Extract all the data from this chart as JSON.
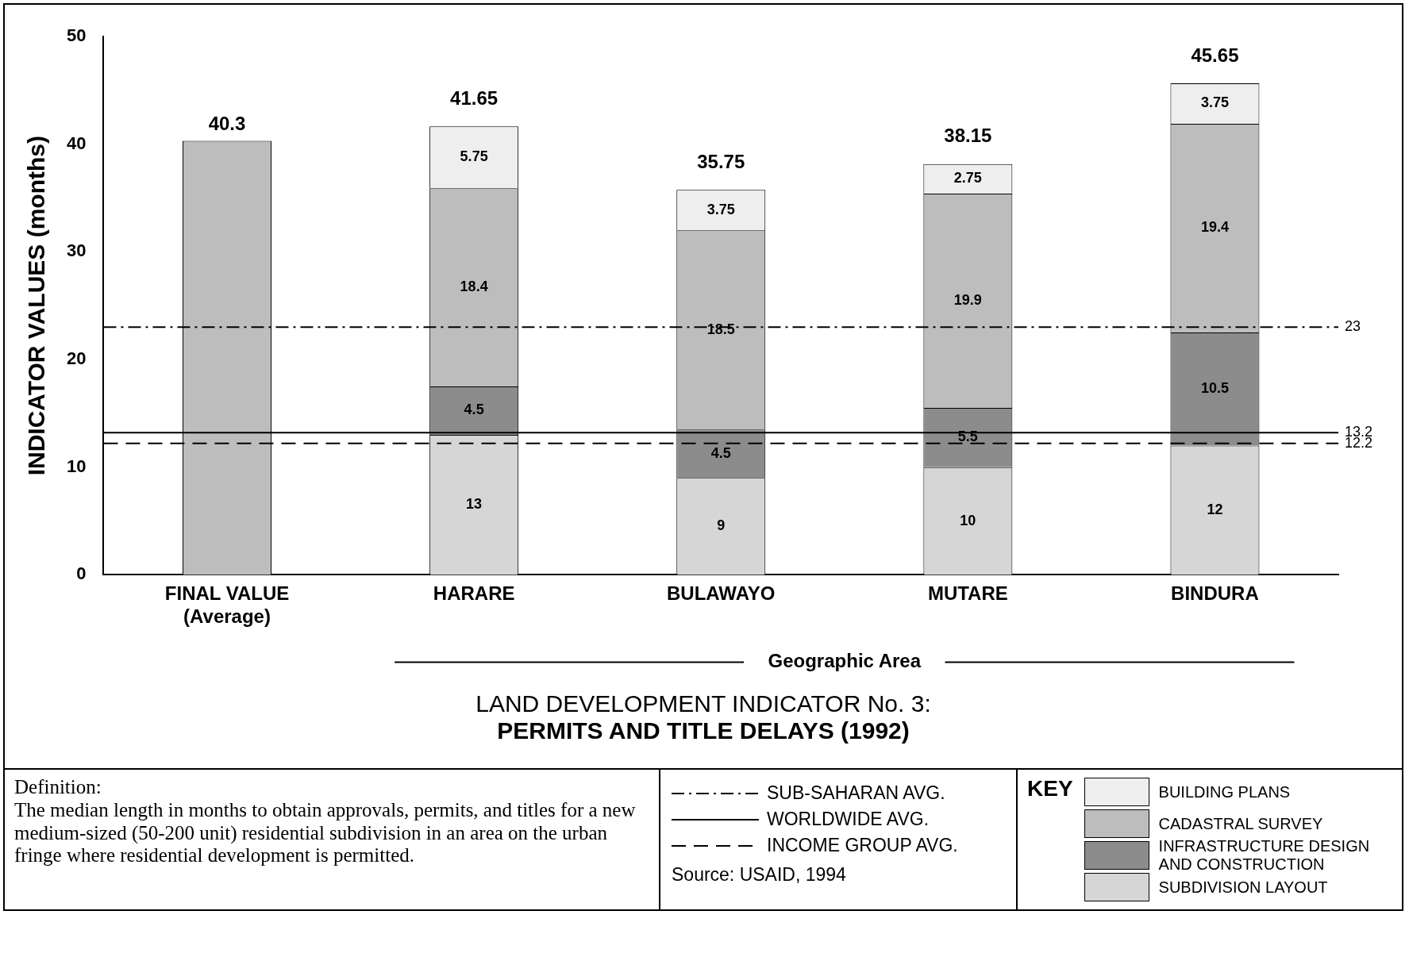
{
  "chart_data": {
    "type": "bar",
    "title": "LAND DEVELOPMENT INDICATOR No. 3:",
    "subtitle": "PERMITS AND TITLE DELAYS (1992)",
    "ylabel": "INDICATOR VALUES (months)",
    "legend_title": "KEY",
    "categories": [
      "FINAL VALUE\n(Average)",
      "HARARE",
      "BULAWAYO",
      "MUTARE",
      "BINDURA"
    ],
    "stacked": true,
    "ylim": [
      0,
      50
    ],
    "yticks": [
      0,
      10,
      20,
      30,
      40,
      50
    ],
    "grid": false,
    "legend": "bottom",
    "data_labels": true,
    "series": [
      {
        "name": "SUBDIVISION LAYOUT",
        "color": "#d6d6d6",
        "values": [
          null,
          13,
          9,
          10,
          12
        ]
      },
      {
        "name": "INFRASTRUCTURE DESIGN AND CONSTRUCTION",
        "color": "#8c8c8c",
        "values": [
          null,
          4.5,
          4.5,
          5.5,
          10.5
        ]
      },
      {
        "name": "CADASTRAL SURVEY",
        "color": "#bdbdbd",
        "values": [
          null,
          18.4,
          18.5,
          19.9,
          19.4
        ]
      },
      {
        "name": "BUILDING PLANS",
        "color": "#eeeeee",
        "values": [
          null,
          5.75,
          3.75,
          2.75,
          3.75
        ]
      },
      {
        "color": "#bdbdbd",
        "values": [
          40.3,
          null,
          null,
          null,
          null
        ]
      }
    ],
    "totals": [
      null,
      "41.65",
      "35.75",
      "38.15",
      "45.65"
    ],
    "ref_lines": [
      {
        "axis": "y",
        "value": 23,
        "label": "23",
        "line_style": "dashdot",
        "color": "#000000"
      },
      {
        "axis": "y",
        "value": 13.2,
        "label": "13.2",
        "line_style": "solid",
        "color": "#000000"
      },
      {
        "axis": "y",
        "value": 12.2,
        "label": "12.2",
        "line_style": "dashed",
        "color": "#000000"
      }
    ],
    "annotations": [
      "Geographic Area",
      "Definition:\nThe median length in months to obtain approvals, permits, and titles for a new medium-sized (50-200 unit) residential subdivision in an area on the urban fringe where residential development is permitted.",
      "Source: USAID, 1994",
      "SUB-SAHARAN AVG.",
      "WORLDWIDE AVG.",
      "INCOME GROUP AVG."
    ]
  }
}
